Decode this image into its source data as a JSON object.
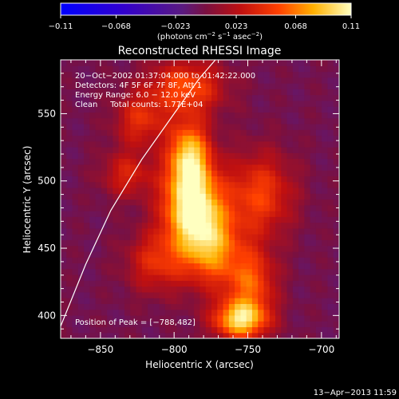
{
  "chart_data": {
    "type": "heatmap",
    "title": "Reconstructed RHESSI Image",
    "xlabel": "Heliocentric X (arcsec)",
    "ylabel": "Heliocentric Y (arcsec)",
    "xlim": [
      -877,
      -688
    ],
    "ylim": [
      383,
      590
    ],
    "x_ticks": [
      -850,
      -800,
      -750,
      -700
    ],
    "x_tick_labels": [
      "−850",
      "−800",
      "−750",
      "−700"
    ],
    "y_ticks": [
      400,
      450,
      500,
      550
    ],
    "y_tick_labels": [
      "400",
      "450",
      "500",
      "550"
    ],
    "colorbar": {
      "range": [
        -0.11,
        0.11
      ],
      "ticks": [
        -0.11,
        -0.068,
        -0.023,
        0.023,
        0.068,
        0.11
      ],
      "tick_labels": [
        "−0.11",
        "−0.068",
        "−0.023",
        "0.023",
        "0.068",
        "0.11"
      ],
      "unit_prefix": "(photons cm",
      "unit_sup1": "−2",
      "unit_mid": " s",
      "unit_sup2": "−1",
      "unit_mid2": " asec",
      "unit_sup3": "−2",
      "unit_suffix": ")"
    },
    "annotations": [
      "20−Oct−2002 01:37:04.000 to 01:42:22.000",
      "Detectors: 4F 5F 6F 7F 8F, Att 1",
      "Energy Range: 6.0 − 12.0 keV",
      "Clean     Total counts: 1.77E+04"
    ],
    "peak_label": "Position of Peak = [−788,482]",
    "peak": [
      -788,
      482
    ],
    "sources": [
      {
        "x": -788,
        "y": 482,
        "peak": 0.11,
        "sx": 14,
        "sy": 22
      },
      {
        "x": -790,
        "y": 520,
        "peak": 0.085,
        "sx": 10,
        "sy": 18
      },
      {
        "x": -792,
        "y": 570,
        "peak": 0.06,
        "sx": 18,
        "sy": 14
      },
      {
        "x": -755,
        "y": 397,
        "peak": 0.095,
        "sx": 13,
        "sy": 10
      },
      {
        "x": -748,
        "y": 425,
        "peak": 0.06,
        "sx": 12,
        "sy": 18
      },
      {
        "x": -742,
        "y": 490,
        "peak": 0.055,
        "sx": 16,
        "sy": 22
      },
      {
        "x": -823,
        "y": 545,
        "peak": 0.045,
        "sx": 12,
        "sy": 14
      },
      {
        "x": -832,
        "y": 505,
        "peak": 0.04,
        "sx": 12,
        "sy": 12
      },
      {
        "x": -812,
        "y": 440,
        "peak": 0.045,
        "sx": 14,
        "sy": 16
      },
      {
        "x": -775,
        "y": 450,
        "peak": 0.07,
        "sx": 14,
        "sy": 20
      }
    ],
    "limb_curve": [
      [
        -877,
        392
      ],
      [
        -860,
        438
      ],
      [
        -843,
        478
      ],
      [
        -822,
        516
      ],
      [
        -800,
        550
      ],
      [
        -783,
        576
      ],
      [
        -772,
        590
      ]
    ]
  },
  "footer": {
    "date": "13−Apr−2013 11:59"
  }
}
